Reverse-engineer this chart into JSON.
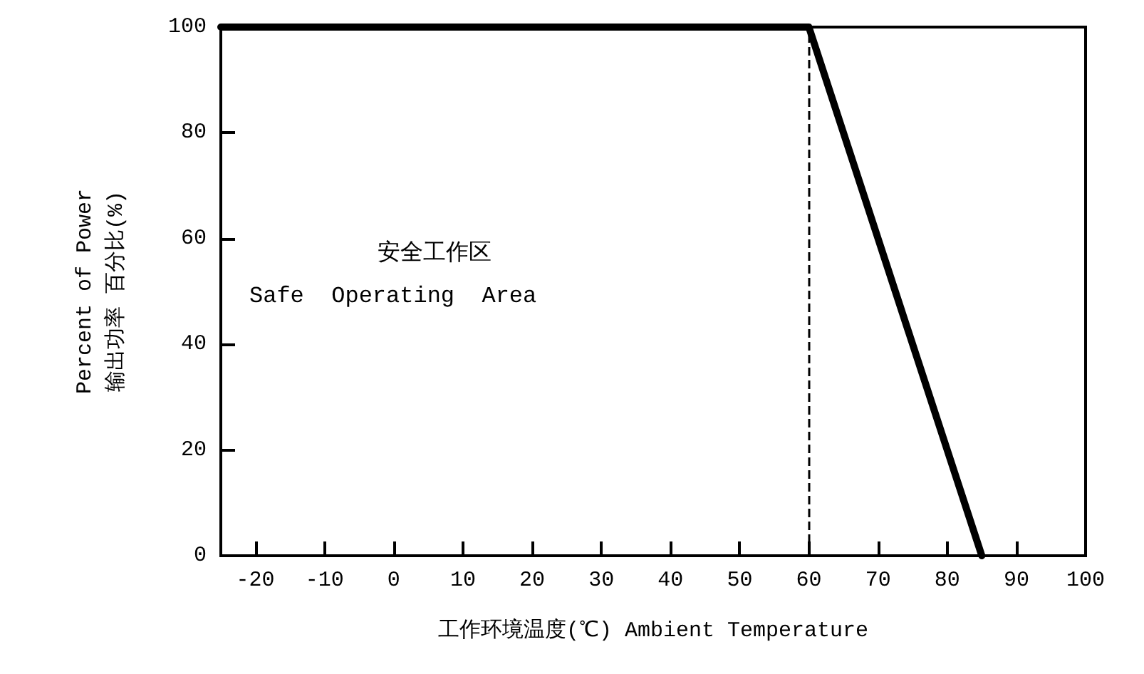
{
  "chart_data": {
    "type": "line",
    "xlabel": "工作环境温度(℃) Ambient Temperature",
    "ylabel": "Percent of Power\n输出功率 百分比(%)",
    "annotations": [
      "安全工作区",
      "Safe  Operating  Area"
    ],
    "series": [
      {
        "color": "#000000",
        "x": [
          -25,
          60,
          85
        ],
        "values": [
          100,
          100,
          0
        ]
      }
    ],
    "xlim": [
      -25,
      100
    ],
    "xticks": [
      -20,
      -10,
      0,
      10,
      20,
      30,
      40,
      50,
      60,
      70,
      80,
      90,
      100
    ],
    "ylim": [
      0,
      100
    ],
    "yticks": [
      0,
      20,
      40,
      60,
      80,
      100
    ],
    "ref_lines": [
      {
        "axis": "x",
        "value": 60,
        "color": "#000000",
        "line_style": "dashed"
      }
    ],
    "grid": false,
    "marker": "none",
    "line_style": "solid"
  }
}
